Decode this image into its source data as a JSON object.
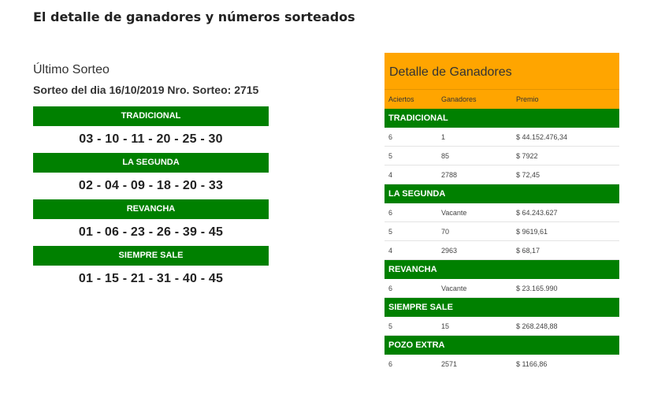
{
  "page_title": "El detalle de ganadores y números sorteados",
  "left": {
    "ultimo_label": "Último Sorteo",
    "sorteo_info": "Sorteo del dia 16/10/2019  Nro. Sorteo: 2715",
    "games": [
      {
        "name": "TRADICIONAL",
        "numbers": "03 - 10 - 11 - 20 - 25 - 30"
      },
      {
        "name": "LA SEGUNDA",
        "numbers": "02 - 04 - 09 - 18 - 20 - 33"
      },
      {
        "name": "REVANCHA",
        "numbers": "01 - 06 - 23 - 26 - 39 - 45"
      },
      {
        "name": "SIEMPRE SALE",
        "numbers": "01 - 15 - 21 - 31 - 40 - 45"
      }
    ]
  },
  "right": {
    "title": "Detalle de Ganadores",
    "columns": {
      "aciertos": "Aciertos",
      "ganadores": "Ganadores",
      "premio": "Premio"
    },
    "sections": [
      {
        "name": "TRADICIONAL",
        "rows": [
          {
            "aciertos": "6",
            "ganadores": "1",
            "premio": "$ 44.152.476,34"
          },
          {
            "aciertos": "5",
            "ganadores": "85",
            "premio": "$ 7922"
          },
          {
            "aciertos": "4",
            "ganadores": "2788",
            "premio": "$ 72,45"
          }
        ]
      },
      {
        "name": "LA SEGUNDA",
        "rows": [
          {
            "aciertos": "6",
            "ganadores": "Vacante",
            "premio": "$ 64.243.627"
          },
          {
            "aciertos": "5",
            "ganadores": "70",
            "premio": "$ 9619,61"
          },
          {
            "aciertos": "4",
            "ganadores": "2963",
            "premio": "$ 68,17"
          }
        ]
      },
      {
        "name": "REVANCHA",
        "rows": [
          {
            "aciertos": "6",
            "ganadores": "Vacante",
            "premio": "$ 23.165.990"
          }
        ]
      },
      {
        "name": "SIEMPRE SALE",
        "rows": [
          {
            "aciertos": "5",
            "ganadores": "15",
            "premio": "$ 268.248,88"
          }
        ]
      },
      {
        "name": "POZO EXTRA",
        "rows": [
          {
            "aciertos": "6",
            "ganadores": "2571",
            "premio": "$ 1166,86"
          }
        ]
      }
    ]
  },
  "colors": {
    "green": "#008000",
    "orange": "#ffa500"
  }
}
